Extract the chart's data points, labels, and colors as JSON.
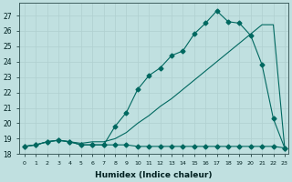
{
  "xlabel": "Humidex (Indice chaleur)",
  "bg_color": "#c0e0e0",
  "line_color": "#006860",
  "grid_color": "#b0d0d0",
  "xlim": [
    -0.5,
    23.3
  ],
  "ylim": [
    18.0,
    27.8
  ],
  "yticks": [
    18,
    19,
    20,
    21,
    22,
    23,
    24,
    25,
    26,
    27
  ],
  "xticks": [
    0,
    1,
    2,
    3,
    4,
    5,
    6,
    7,
    8,
    9,
    10,
    11,
    12,
    13,
    14,
    15,
    16,
    17,
    18,
    19,
    20,
    21,
    22,
    23
  ],
  "line_flat_x": [
    0,
    1,
    2,
    3,
    4,
    5,
    6,
    7,
    8,
    9,
    10,
    11,
    12,
    13,
    14,
    15,
    16,
    17,
    18,
    19,
    20,
    21,
    22,
    23
  ],
  "line_flat_y": [
    18.5,
    18.6,
    18.8,
    18.9,
    18.8,
    18.6,
    18.6,
    18.6,
    18.6,
    18.6,
    18.5,
    18.5,
    18.5,
    18.5,
    18.5,
    18.5,
    18.5,
    18.5,
    18.5,
    18.5,
    18.5,
    18.5,
    18.5,
    18.4
  ],
  "line_diag_x": [
    0,
    1,
    2,
    3,
    4,
    5,
    6,
    7,
    8,
    9,
    10,
    11,
    12,
    13,
    14,
    15,
    16,
    17,
    18,
    19,
    20,
    21,
    22,
    23
  ],
  "line_diag_y": [
    18.5,
    18.6,
    18.8,
    18.9,
    18.8,
    18.7,
    18.8,
    18.8,
    19.0,
    19.4,
    20.0,
    20.5,
    21.1,
    21.6,
    22.2,
    22.8,
    23.4,
    24.0,
    24.6,
    25.2,
    25.8,
    26.4,
    26.4,
    18.4
  ],
  "line_curve_x": [
    0,
    1,
    2,
    3,
    4,
    5,
    6,
    7,
    8,
    9,
    10,
    11,
    12,
    13,
    14,
    15,
    16,
    17,
    18,
    19,
    20,
    21,
    22,
    23
  ],
  "line_curve_y": [
    18.5,
    18.6,
    18.8,
    18.9,
    18.8,
    18.6,
    18.6,
    18.6,
    19.8,
    20.7,
    22.2,
    23.1,
    23.6,
    24.4,
    24.7,
    25.8,
    26.5,
    27.3,
    26.6,
    26.5,
    25.7,
    23.8,
    20.3,
    18.4
  ],
  "marker": "D",
  "marker_size": 2.5
}
